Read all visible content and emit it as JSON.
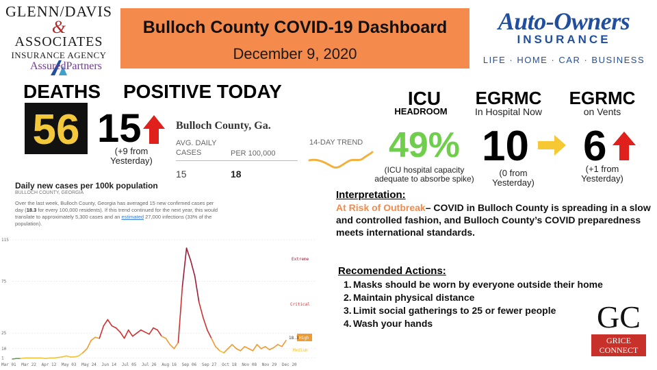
{
  "header": {
    "left_logo": {
      "line1": "GLENN/DAVIS",
      "amp": "&",
      "line3": "ASSOCIATES",
      "line4": "INSURANCE AGENCY",
      "line5": "AssuredPartners"
    },
    "title": "Bulloch County COVID-19 Dashboard",
    "date": "December 9, 2020",
    "right_logo": {
      "name": "Auto-Owners",
      "sub": "INSURANCE",
      "tagline": "LIFE · HOME · CAR · BUSINESS"
    }
  },
  "stats": {
    "deaths": {
      "label": "DEATHS",
      "value": "56"
    },
    "positive": {
      "label": "POSITIVE TODAY",
      "value": "15",
      "note1": "(+9 from",
      "note2": "Yesterday)"
    },
    "county_card": {
      "title": "Bulloch County, Ga.",
      "col1_header1": "AVG. DAILY",
      "col1_header2": "CASES",
      "col2_header": "PER 100,000",
      "col1_value": "15",
      "col2_value": "18",
      "trend_label": "14-DAY TREND"
    },
    "icu": {
      "label": "ICU",
      "sublabel": "HEADROOM",
      "value": "49%",
      "note1": "(ICU hospital capacity",
      "note2": "adequate to absorbe spike)"
    },
    "egrmc_hospital": {
      "label": "EGRMC",
      "sublabel": "In Hospital Now",
      "value": "10",
      "note1": "(0 from",
      "note2": "Yesterday)"
    },
    "egrmc_vents": {
      "label": "EGRMC",
      "sublabel": "on Vents",
      "value": "6",
      "note1": "(+1 from",
      "note2": "Yesterday)"
    }
  },
  "interpretation": {
    "heading": "Interpretation:",
    "risk": "At Risk of Outbreak",
    "text": "– COVID in Bulloch County is spreading in a slow and controlled fashion, and Bulloch County’s COVID preparedness meets international standards."
  },
  "actions": {
    "heading": "Recomended Actions:",
    "items": [
      "Masks should be worn by everyone outside their home",
      "Maintain physical distance",
      "Limit social gatherings to 25 or fewer people",
      "Wash your hands"
    ]
  },
  "grice_logo": {
    "letters": "GC",
    "line1": "GRICE",
    "line2": "CONNECT"
  },
  "chart_info": {
    "title": "Daily new cases per 100k population",
    "subtitle": "BULLOCH COUNTY, GEORGIA",
    "desc_a": "Over the last week, Bulloch County, Georgia has averaged 15 new confirmed cases per day (",
    "desc_b": "18.3",
    "desc_c": " for every 100,000 residents). If this trend continued for the next year, this would translate to approximately 5,300 cases and an ",
    "desc_link": "estimated",
    "desc_d": " 27,000 infections (33% of the population).",
    "zone_extreme": "Extreme",
    "zone_critical": "Critical",
    "zone_high": "High",
    "zone_medium": "Medium",
    "current_label": "18.3"
  },
  "colors": {
    "title_bg": "#f48a4b",
    "icu_green": "#6fce4b",
    "up_arrow": "#e0201c",
    "flat_arrow": "#f6c834",
    "risk_orange": "#f48a4b",
    "low_green": "#5a9e46",
    "medium_yellow": "#f1c232",
    "high_orange": "#f09a30",
    "critical_red": "#d03030",
    "extreme_maroon": "#9b1b36"
  },
  "chart_data": {
    "type": "line",
    "title": "Daily new cases per 100k population",
    "xlabel": "",
    "ylabel": "",
    "ylim": [
      0,
      115
    ],
    "yticks": [
      1,
      10,
      25,
      75,
      115
    ],
    "xticks": [
      "Mar 01",
      "Mar 22",
      "Apr 12",
      "May 03",
      "May 24",
      "Jun 14",
      "Jul 05",
      "Jul 26",
      "Aug 16",
      "Sep 06",
      "Sep 27",
      "Oct 18",
      "Nov 08",
      "Nov 29",
      "Dec 20"
    ],
    "series": [
      {
        "values": [
          0,
          0.5,
          0.5,
          1,
          1,
          1,
          1,
          1,
          0.5,
          1,
          1,
          1.5,
          2,
          3,
          2,
          2,
          3,
          6,
          10,
          18,
          21,
          20,
          32,
          38,
          32,
          30,
          26,
          20,
          28,
          22,
          25,
          28,
          26,
          24,
          30,
          28,
          22,
          20,
          14,
          10,
          16,
          70,
          107,
          95,
          80,
          55,
          40,
          28,
          20,
          12,
          8,
          6,
          10,
          14,
          10,
          8,
          12,
          10,
          8,
          14,
          10,
          12,
          9,
          11,
          14,
          12,
          18
        ]
      }
    ]
  }
}
